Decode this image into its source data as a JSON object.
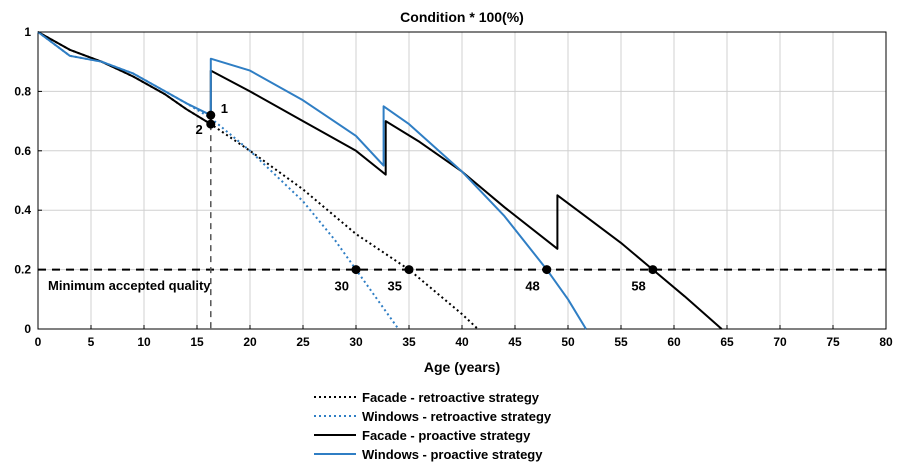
{
  "chart_data": {
    "type": "line",
    "title": "Condition * 100(%)",
    "xlabel": "Age (years)",
    "ylabel": "",
    "xlim": [
      0,
      80
    ],
    "ylim": [
      0,
      1
    ],
    "xticks": [
      "0",
      "5",
      "10",
      "15",
      "20",
      "25",
      "30",
      "35",
      "40",
      "45",
      "50",
      "55",
      "60",
      "65",
      "70",
      "75",
      "80"
    ],
    "yticks": [
      "0",
      "0.2",
      "0.4",
      "0.6",
      "0.8",
      "1"
    ],
    "grid": true,
    "legend_position": "bottom",
    "threshold": {
      "y": 0.2,
      "label": "Minimum accepted quality"
    },
    "intervention_line": {
      "x": 16.3
    },
    "series": [
      {
        "name": "Facade - retroactive strategy",
        "color": "#000000",
        "style": "dotted",
        "points": [
          [
            0,
            1.0
          ],
          [
            3,
            0.94
          ],
          [
            6,
            0.9
          ],
          [
            9,
            0.85
          ],
          [
            12,
            0.79
          ],
          [
            14,
            0.74
          ],
          [
            16.3,
            0.69
          ],
          [
            20,
            0.6
          ],
          [
            25,
            0.47
          ],
          [
            30,
            0.32
          ],
          [
            35,
            0.2
          ],
          [
            38,
            0.11
          ],
          [
            40,
            0.05
          ],
          [
            41.5,
            0.0
          ]
        ]
      },
      {
        "name": "Windows - retroactive strategy",
        "color": "#2f7ec4",
        "style": "dotted",
        "points": [
          [
            0,
            1.0
          ],
          [
            3,
            0.92
          ],
          [
            6,
            0.9
          ],
          [
            9,
            0.86
          ],
          [
            12,
            0.8
          ],
          [
            14,
            0.76
          ],
          [
            16.3,
            0.71
          ],
          [
            20,
            0.6
          ],
          [
            25,
            0.43
          ],
          [
            28,
            0.3
          ],
          [
            30,
            0.2
          ],
          [
            32,
            0.1
          ],
          [
            34,
            0.0
          ]
        ]
      },
      {
        "name": "Facade - proactive strategy",
        "color": "#000000",
        "style": "solid",
        "points": [
          [
            0,
            1.0
          ],
          [
            3,
            0.94
          ],
          [
            6,
            0.9
          ],
          [
            9,
            0.85
          ],
          [
            12,
            0.79
          ],
          [
            14,
            0.74
          ],
          [
            16.3,
            0.69
          ],
          [
            16.3,
            0.87
          ],
          [
            20,
            0.8
          ],
          [
            25,
            0.7
          ],
          [
            30,
            0.6
          ],
          [
            32.8,
            0.52
          ],
          [
            32.8,
            0.7
          ],
          [
            36,
            0.63
          ],
          [
            40,
            0.53
          ],
          [
            44,
            0.41
          ],
          [
            49,
            0.27
          ],
          [
            49,
            0.45
          ],
          [
            52,
            0.37
          ],
          [
            55,
            0.29
          ],
          [
            58,
            0.2
          ],
          [
            61,
            0.11
          ],
          [
            64.5,
            0.0
          ]
        ]
      },
      {
        "name": "Windows - proactive strategy",
        "color": "#2f7ec4",
        "style": "solid",
        "points": [
          [
            0,
            1.0
          ],
          [
            3,
            0.92
          ],
          [
            6,
            0.9
          ],
          [
            9,
            0.86
          ],
          [
            12,
            0.8
          ],
          [
            14,
            0.76
          ],
          [
            16.3,
            0.72
          ],
          [
            16.3,
            0.91
          ],
          [
            20,
            0.87
          ],
          [
            25,
            0.77
          ],
          [
            30,
            0.65
          ],
          [
            32.6,
            0.55
          ],
          [
            32.6,
            0.75
          ],
          [
            35,
            0.69
          ],
          [
            40,
            0.53
          ],
          [
            44,
            0.38
          ],
          [
            48,
            0.2
          ],
          [
            50,
            0.1
          ],
          [
            51.7,
            0.0
          ]
        ]
      }
    ],
    "annotations": [
      {
        "label": "1",
        "x": 16.3,
        "y": 0.72,
        "anchor": "right-up"
      },
      {
        "label": "2",
        "x": 16.3,
        "y": 0.69,
        "anchor": "left-down"
      },
      {
        "label": "30",
        "x": 30,
        "y": 0.2,
        "anchor": "left-down"
      },
      {
        "label": "35",
        "x": 35,
        "y": 0.2,
        "anchor": "left-down"
      },
      {
        "label": "48",
        "x": 48,
        "y": 0.2,
        "anchor": "left-down"
      },
      {
        "label": "58",
        "x": 58,
        "y": 0.2,
        "anchor": "left-down"
      }
    ]
  }
}
